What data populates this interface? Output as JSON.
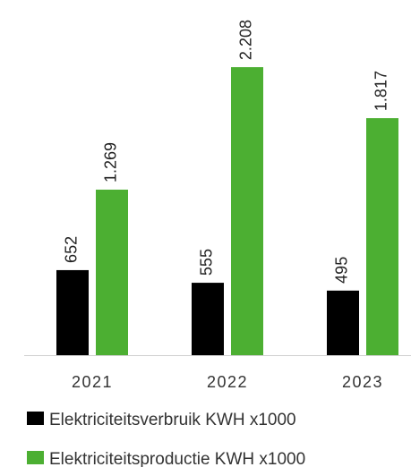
{
  "chart_data": {
    "type": "bar",
    "categories": [
      "2021",
      "2022",
      "2023"
    ],
    "series": [
      {
        "name": "Elektriciteitsverbruik KWH x1000",
        "color": "#000000",
        "values": [
          652,
          555,
          495
        ]
      },
      {
        "name": "Elektriciteitsproductie KWH x1000",
        "color": "#4caf32",
        "values": [
          1269,
          2208,
          1817
        ],
        "value_labels": [
          "1.269",
          "2.208",
          "1.817"
        ]
      }
    ],
    "legend": "bottom"
  }
}
